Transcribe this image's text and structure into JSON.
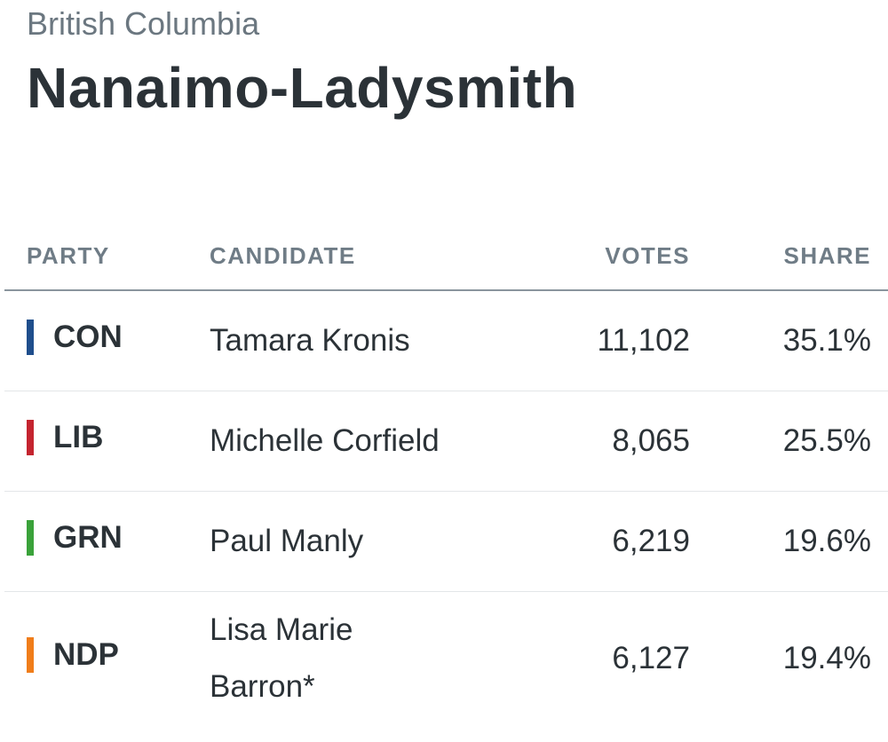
{
  "header": {
    "region": "British Columbia",
    "title": "Nanaimo-Ladysmith"
  },
  "table": {
    "columns": [
      "PARTY",
      "CANDIDATE",
      "VOTES",
      "SHARE"
    ],
    "rows": [
      {
        "party": "CON",
        "color": "#1f4e8c",
        "candidate": "Tamara Kronis",
        "votes": "11,102",
        "share": "35.1%"
      },
      {
        "party": "LIB",
        "color": "#c4242f",
        "candidate": "Michelle Corfield",
        "votes": "8,065",
        "share": "25.5%"
      },
      {
        "party": "GRN",
        "color": "#3aa23a",
        "candidate": "Paul Manly",
        "votes": "6,219",
        "share": "19.6%"
      },
      {
        "party": "NDP",
        "color": "#f07d1a",
        "candidate": "Lisa Marie Barron*",
        "votes": "6,127",
        "share": "19.4%"
      }
    ]
  }
}
